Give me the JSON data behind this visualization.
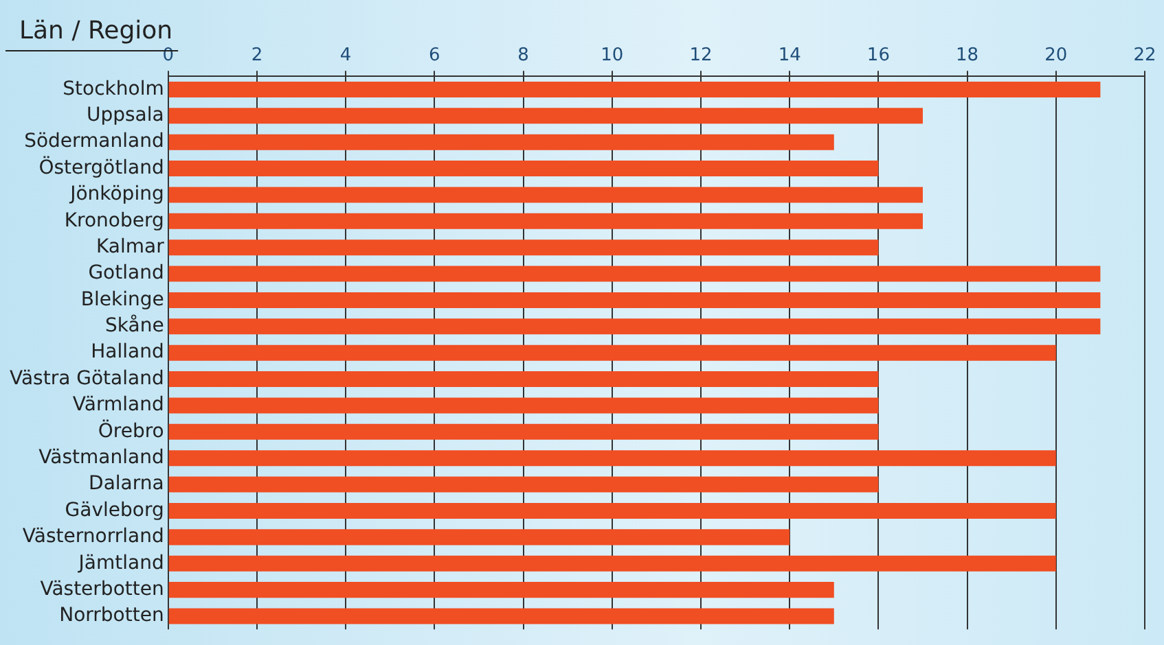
{
  "chart_data": {
    "type": "bar",
    "orientation": "horizontal",
    "ylabel": "Län / Region",
    "categories": [
      "Stockholm",
      "Uppsala",
      "Södermanland",
      "Östergötland",
      "Jönköping",
      "Kronoberg",
      "Kalmar",
      "Gotland",
      "Blekinge",
      "Skåne",
      "Halland",
      "Västra Götaland",
      "Värmland",
      "Örebro",
      "Västmanland",
      "Dalarna",
      "Gävleborg",
      "Västernorrland",
      "Jämtland",
      "Västerbotten",
      "Norrbotten"
    ],
    "values": [
      21,
      17,
      15,
      16,
      17,
      17,
      16,
      21,
      21,
      21,
      20,
      16,
      16,
      16,
      20,
      16,
      20,
      14,
      20,
      15,
      15
    ],
    "color": "#f04e23",
    "xlim": [
      0,
      22
    ],
    "xticks": [
      0,
      2,
      4,
      6,
      8,
      10,
      12,
      14,
      16,
      18,
      20,
      22
    ],
    "grid": "x"
  }
}
